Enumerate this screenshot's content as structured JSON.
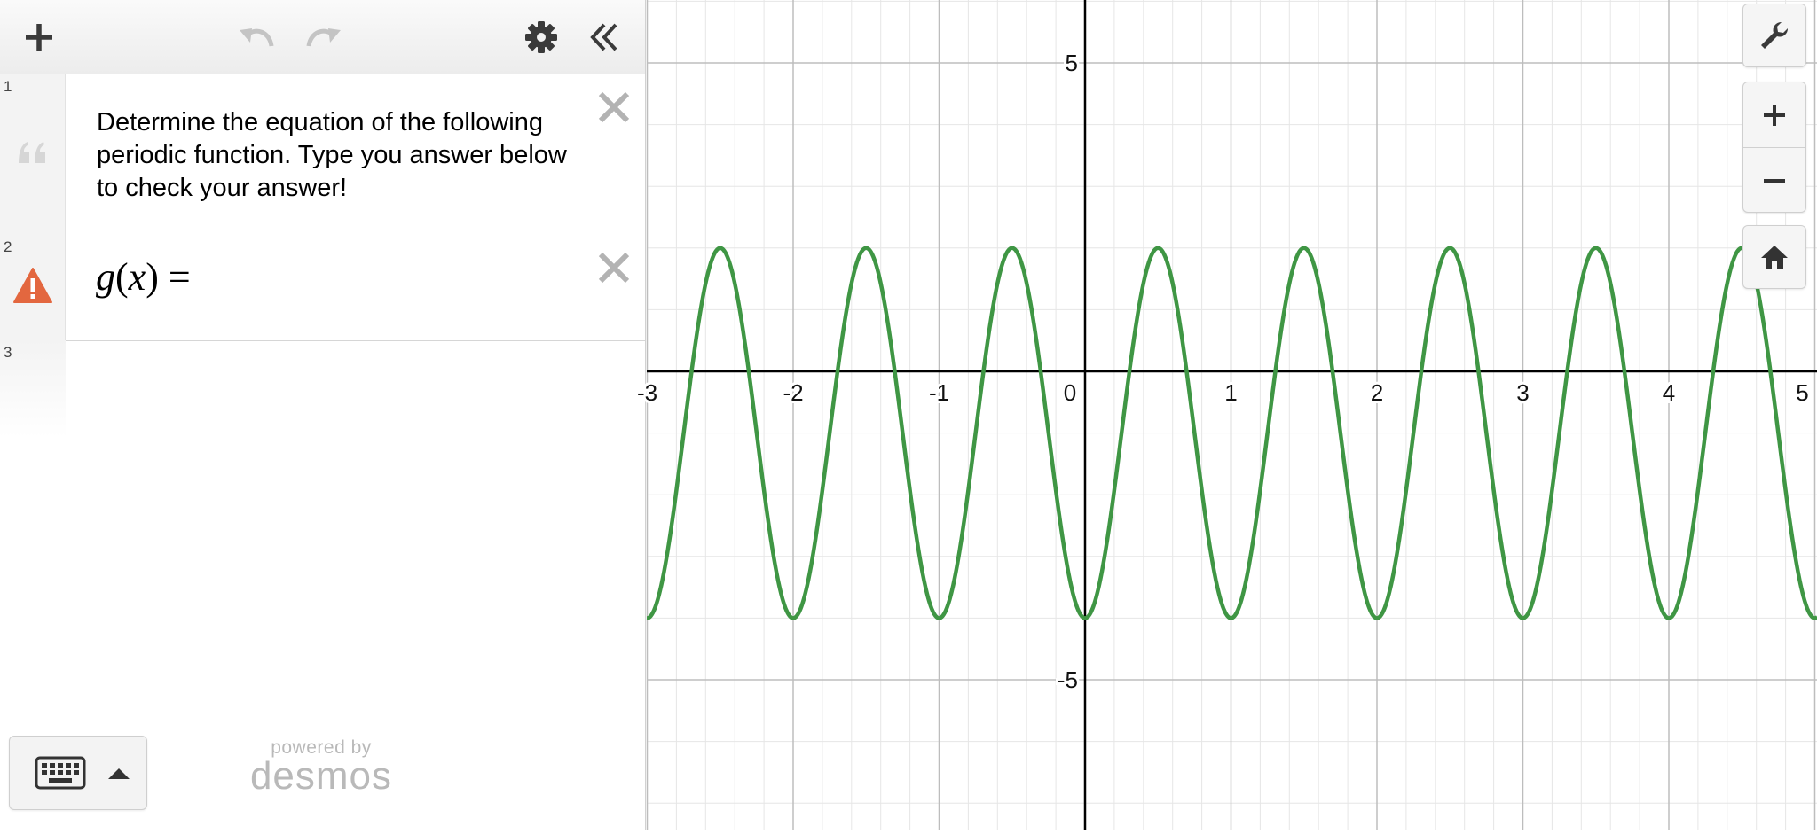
{
  "app": {
    "brand_small": "powered by",
    "brand_name": "desmos"
  },
  "toolbar": {
    "icons": [
      "plus-icon",
      "undo-icon",
      "redo-icon",
      "gear-icon",
      "collapse-icon"
    ]
  },
  "expressions": [
    {
      "number": "1",
      "type": "note",
      "icon": "quote-icon",
      "text": "Determine the equation of the following periodic function. Type you answer below to check your answer!"
    },
    {
      "number": "2",
      "type": "expression",
      "icon": "warning-icon",
      "status_color": "#e3673f",
      "lhs_func": "g",
      "lhs_var": "x",
      "rhs": "="
    },
    {
      "number": "3",
      "type": "empty"
    }
  ],
  "graph_controls": {
    "icons": [
      "wrench-icon",
      "zoom-in-icon",
      "zoom-out-icon",
      "home-icon"
    ]
  },
  "chart_data": {
    "type": "line",
    "function": "y = 3cos(2πx − π) + (−1)",
    "amplitude": 3,
    "period": 1,
    "midline": -1,
    "max_y": 2,
    "min_y": -4,
    "xlim": [
      -3.2,
      5.1
    ],
    "ylim": [
      -7.2,
      6
    ],
    "x_ticks": [
      "-3",
      "-2",
      "-1",
      "0",
      "1",
      "2",
      "3",
      "4",
      "5"
    ],
    "y_ticks": [
      "5",
      "-5"
    ],
    "grid": true,
    "line_color": "#3f9644"
  }
}
